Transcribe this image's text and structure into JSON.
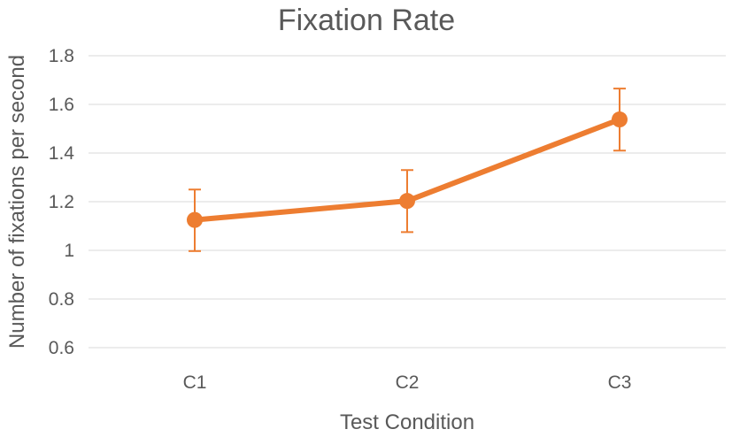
{
  "chart_data": {
    "type": "line",
    "title": "Fixation Rate",
    "xlabel": "Test Condition",
    "ylabel": "Number of fixations per second",
    "categories": [
      "C1",
      "C2",
      "C3"
    ],
    "series": [
      {
        "values": [
          1.125,
          1.203,
          1.538
        ],
        "error_low": [
          0.997,
          1.075,
          1.41
        ],
        "error_high": [
          1.25,
          1.33,
          1.665
        ]
      }
    ],
    "ylim": [
      0.6,
      1.8
    ],
    "yticks": [
      0.6,
      0.8,
      1,
      1.2,
      1.4,
      1.6,
      1.8
    ],
    "ytick_labels": [
      "0.6",
      "0.8",
      "1",
      "1.2",
      "1.4",
      "1.6",
      "1.8"
    ],
    "grid": true,
    "legend": "none",
    "colors": {
      "series": "#ed7d31",
      "grid": "#d9d9d9",
      "text": "#595959"
    }
  }
}
